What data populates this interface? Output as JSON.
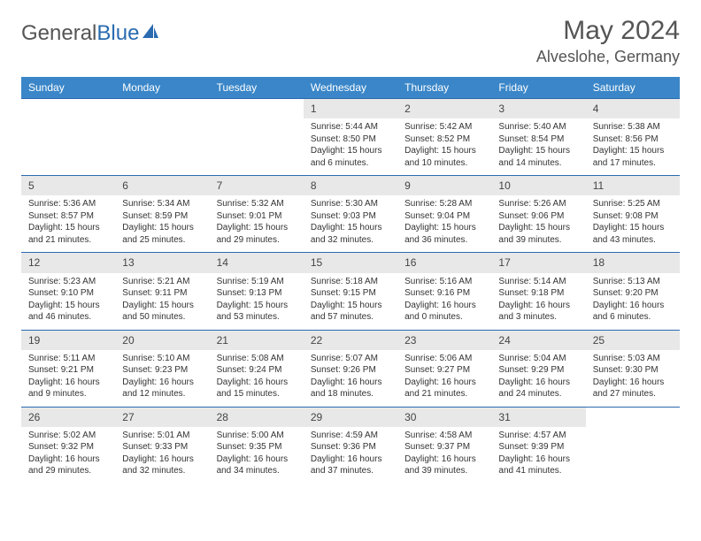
{
  "brand": {
    "part1": "General",
    "part2": "Blue"
  },
  "title": {
    "month_year": "May 2024",
    "location": "Alveslohe, Germany"
  },
  "colors": {
    "header_bg": "#3a86c8",
    "daynum_bg": "#e8e8e8",
    "rule": "#2a6bb0",
    "text": "#333333",
    "title_text": "#555555"
  },
  "day_headers": [
    "Sunday",
    "Monday",
    "Tuesday",
    "Wednesday",
    "Thursday",
    "Friday",
    "Saturday"
  ],
  "weeks": [
    [
      null,
      null,
      null,
      {
        "n": "1",
        "sr": "5:44 AM",
        "ss": "8:50 PM",
        "dl": "15 hours and 6 minutes."
      },
      {
        "n": "2",
        "sr": "5:42 AM",
        "ss": "8:52 PM",
        "dl": "15 hours and 10 minutes."
      },
      {
        "n": "3",
        "sr": "5:40 AM",
        "ss": "8:54 PM",
        "dl": "15 hours and 14 minutes."
      },
      {
        "n": "4",
        "sr": "5:38 AM",
        "ss": "8:56 PM",
        "dl": "15 hours and 17 minutes."
      }
    ],
    [
      {
        "n": "5",
        "sr": "5:36 AM",
        "ss": "8:57 PM",
        "dl": "15 hours and 21 minutes."
      },
      {
        "n": "6",
        "sr": "5:34 AM",
        "ss": "8:59 PM",
        "dl": "15 hours and 25 minutes."
      },
      {
        "n": "7",
        "sr": "5:32 AM",
        "ss": "9:01 PM",
        "dl": "15 hours and 29 minutes."
      },
      {
        "n": "8",
        "sr": "5:30 AM",
        "ss": "9:03 PM",
        "dl": "15 hours and 32 minutes."
      },
      {
        "n": "9",
        "sr": "5:28 AM",
        "ss": "9:04 PM",
        "dl": "15 hours and 36 minutes."
      },
      {
        "n": "10",
        "sr": "5:26 AM",
        "ss": "9:06 PM",
        "dl": "15 hours and 39 minutes."
      },
      {
        "n": "11",
        "sr": "5:25 AM",
        "ss": "9:08 PM",
        "dl": "15 hours and 43 minutes."
      }
    ],
    [
      {
        "n": "12",
        "sr": "5:23 AM",
        "ss": "9:10 PM",
        "dl": "15 hours and 46 minutes."
      },
      {
        "n": "13",
        "sr": "5:21 AM",
        "ss": "9:11 PM",
        "dl": "15 hours and 50 minutes."
      },
      {
        "n": "14",
        "sr": "5:19 AM",
        "ss": "9:13 PM",
        "dl": "15 hours and 53 minutes."
      },
      {
        "n": "15",
        "sr": "5:18 AM",
        "ss": "9:15 PM",
        "dl": "15 hours and 57 minutes."
      },
      {
        "n": "16",
        "sr": "5:16 AM",
        "ss": "9:16 PM",
        "dl": "16 hours and 0 minutes."
      },
      {
        "n": "17",
        "sr": "5:14 AM",
        "ss": "9:18 PM",
        "dl": "16 hours and 3 minutes."
      },
      {
        "n": "18",
        "sr": "5:13 AM",
        "ss": "9:20 PM",
        "dl": "16 hours and 6 minutes."
      }
    ],
    [
      {
        "n": "19",
        "sr": "5:11 AM",
        "ss": "9:21 PM",
        "dl": "16 hours and 9 minutes."
      },
      {
        "n": "20",
        "sr": "5:10 AM",
        "ss": "9:23 PM",
        "dl": "16 hours and 12 minutes."
      },
      {
        "n": "21",
        "sr": "5:08 AM",
        "ss": "9:24 PM",
        "dl": "16 hours and 15 minutes."
      },
      {
        "n": "22",
        "sr": "5:07 AM",
        "ss": "9:26 PM",
        "dl": "16 hours and 18 minutes."
      },
      {
        "n": "23",
        "sr": "5:06 AM",
        "ss": "9:27 PM",
        "dl": "16 hours and 21 minutes."
      },
      {
        "n": "24",
        "sr": "5:04 AM",
        "ss": "9:29 PM",
        "dl": "16 hours and 24 minutes."
      },
      {
        "n": "25",
        "sr": "5:03 AM",
        "ss": "9:30 PM",
        "dl": "16 hours and 27 minutes."
      }
    ],
    [
      {
        "n": "26",
        "sr": "5:02 AM",
        "ss": "9:32 PM",
        "dl": "16 hours and 29 minutes."
      },
      {
        "n": "27",
        "sr": "5:01 AM",
        "ss": "9:33 PM",
        "dl": "16 hours and 32 minutes."
      },
      {
        "n": "28",
        "sr": "5:00 AM",
        "ss": "9:35 PM",
        "dl": "16 hours and 34 minutes."
      },
      {
        "n": "29",
        "sr": "4:59 AM",
        "ss": "9:36 PM",
        "dl": "16 hours and 37 minutes."
      },
      {
        "n": "30",
        "sr": "4:58 AM",
        "ss": "9:37 PM",
        "dl": "16 hours and 39 minutes."
      },
      {
        "n": "31",
        "sr": "4:57 AM",
        "ss": "9:39 PM",
        "dl": "16 hours and 41 minutes."
      },
      null
    ]
  ],
  "labels": {
    "sunrise": "Sunrise: ",
    "sunset": "Sunset: ",
    "daylight": "Daylight: "
  }
}
